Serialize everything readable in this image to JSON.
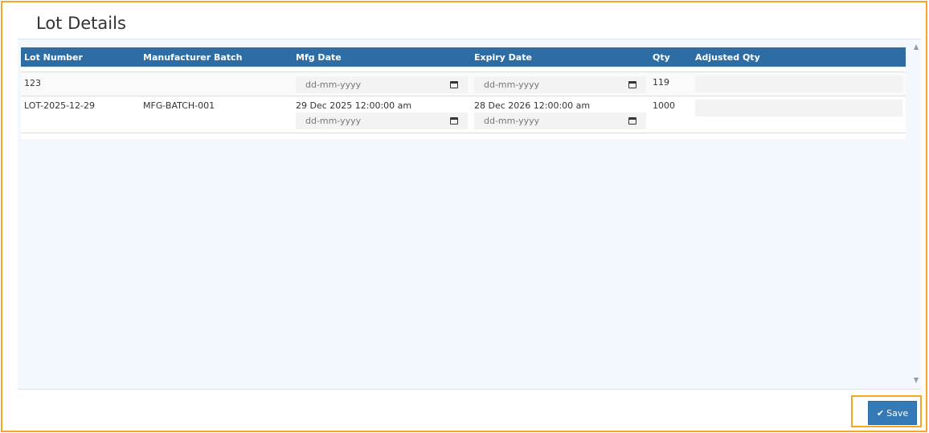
{
  "title": "Lot Details",
  "columns": [
    "Lot Number",
    "Manufacturer Batch",
    "Mfg Date",
    "Expiry Date",
    "Qty",
    "Adjusted Qty"
  ],
  "rows": [
    {
      "lot": "123",
      "batch": "",
      "mfg_text": "",
      "mfg_placeholder": "dd-mm-yyyy",
      "exp_text": "",
      "exp_placeholder": "dd-mm-yyyy",
      "qty": "119",
      "adjusted": ""
    },
    {
      "lot": "LOT-2025-12-29",
      "batch": "MFG-BATCH-001",
      "mfg_text": "29 Dec 2025 12:00:00 am",
      "mfg_placeholder": "dd-mm-yyyy",
      "exp_text": "28 Dec 2026 12:00:00 am",
      "exp_placeholder": "dd-mm-yyyy",
      "qty": "1000",
      "adjusted": ""
    }
  ],
  "save_label": "Save",
  "colors": {
    "header": "#2e6da4",
    "button": "#337ab7",
    "highlight": "#f5a623"
  }
}
